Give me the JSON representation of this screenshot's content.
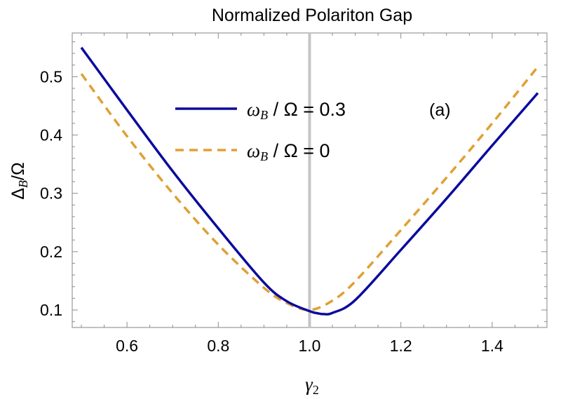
{
  "chart_data": {
    "type": "line",
    "title": "Normalized Polariton Gap",
    "xlabel_main": "γ",
    "xlabel_sub": "2",
    "ylabel_main": "Δ",
    "ylabel_sub": "B",
    "ylabel_tail": "/Ω",
    "xlim": [
      0.48,
      1.52
    ],
    "ylim": [
      0.07,
      0.575
    ],
    "x_ticks": [
      0.6,
      0.8,
      1.0,
      1.2,
      1.4
    ],
    "x_tick_labels": [
      "0.6",
      "0.8",
      "1.0",
      "1.2",
      "1.4"
    ],
    "y_ticks": [
      0.1,
      0.2,
      0.3,
      0.4,
      0.5
    ],
    "y_tick_labels": [
      "0.1",
      "0.2",
      "0.3",
      "0.4",
      "0.5"
    ],
    "vertical_line_x": 1.0,
    "annotation": "(a)",
    "grid": false,
    "legend_position": "top-center",
    "series": [
      {
        "legend_var": "ω",
        "legend_sub": "B",
        "legend_rest": " / Ω = 0.3",
        "color": "#0b0b9e",
        "style": "solid",
        "x": [
          0.5,
          0.6,
          0.7,
          0.8,
          0.9,
          0.95,
          1.0,
          1.02,
          1.03,
          1.05,
          1.1,
          1.2,
          1.3,
          1.4,
          1.5
        ],
        "y": [
          0.55,
          0.443,
          0.338,
          0.24,
          0.147,
          0.115,
          0.098,
          0.094,
          0.093,
          0.095,
          0.117,
          0.203,
          0.291,
          0.382,
          0.472
        ]
      },
      {
        "legend_var": "ω",
        "legend_sub": "B",
        "legend_rest": " / Ω = 0",
        "color": "#e0a035",
        "style": "dashed",
        "x": [
          0.5,
          0.6,
          0.7,
          0.8,
          0.9,
          0.95,
          1.0,
          1.05,
          1.1,
          1.2,
          1.3,
          1.4,
          1.5
        ],
        "y": [
          0.505,
          0.398,
          0.3,
          0.212,
          0.138,
          0.112,
          0.1,
          0.116,
          0.149,
          0.237,
          0.327,
          0.42,
          0.517
        ]
      }
    ]
  }
}
